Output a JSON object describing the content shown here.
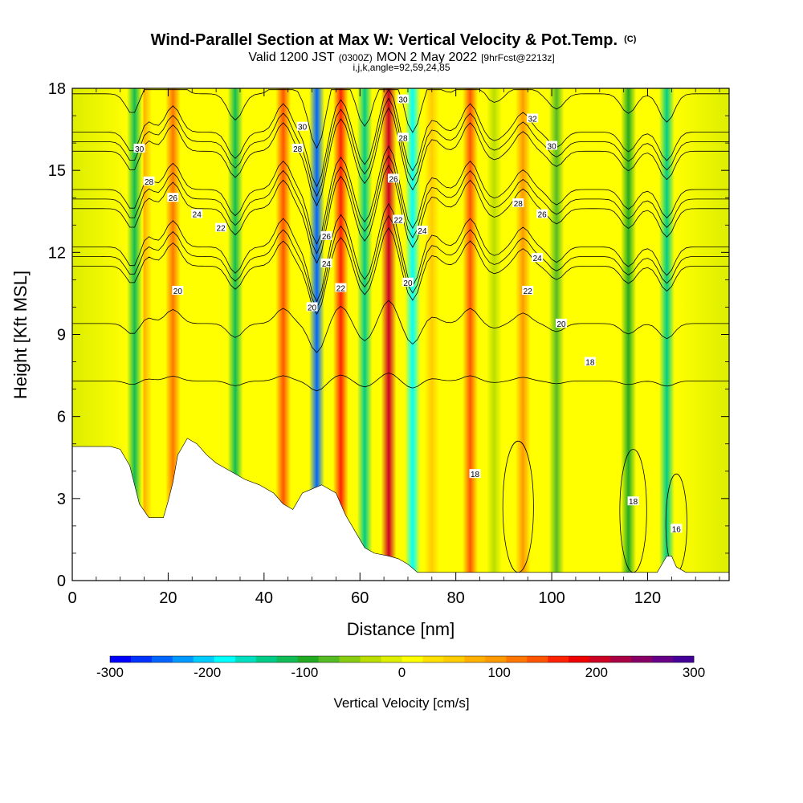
{
  "title": {
    "main": "Wind-Parallel Section at Max W: Vertical Velocity & Pot.Temp.",
    "copyright": "(C)",
    "valid_prefix": "Valid 1200 JST",
    "valid_utc": "(0300Z)",
    "valid_date": "MON 2 May 2022",
    "forecast": "[9hrFcst@2213z]",
    "params": "i,j,k,angle=92,59,24,85"
  },
  "chart_data": {
    "type": "heatmap",
    "xlabel": "Distance [nm]",
    "ylabel": "Height [Kft MSL]",
    "xlim": [
      0,
      137
    ],
    "ylim": [
      0,
      18
    ],
    "xticks": [
      0,
      20,
      40,
      60,
      80,
      100,
      120
    ],
    "yticks": [
      0,
      3,
      6,
      9,
      12,
      15,
      18
    ],
    "fill_variable": "Vertical Velocity [cm/s]",
    "colorbar": {
      "label": "Vertical Velocity [cm/s]",
      "min": -300,
      "max": 300,
      "ticks": [
        -300,
        -200,
        -100,
        0,
        100,
        200,
        300
      ],
      "colors": [
        "#0000ff",
        "#0033ff",
        "#0066ff",
        "#0099ff",
        "#00ccff",
        "#00ffff",
        "#00e0c0",
        "#00cc88",
        "#11bb55",
        "#22aa22",
        "#55bb22",
        "#88cc11",
        "#bbdd00",
        "#ddee00",
        "#ffff00",
        "#ffe000",
        "#ffcc00",
        "#ffb000",
        "#ff9900",
        "#ff7700",
        "#ff5500",
        "#ff2200",
        "#ee0000",
        "#cc0022",
        "#aa0044",
        "#880066",
        "#660088",
        "#440099"
      ]
    },
    "updraft_cores": [
      {
        "distance": 13,
        "w": -120
      },
      {
        "distance": 15,
        "w": 80
      },
      {
        "distance": 21,
        "w": 120
      },
      {
        "distance": 34,
        "w": -120
      },
      {
        "distance": 44,
        "w": 130
      },
      {
        "distance": 51,
        "w": -250
      },
      {
        "distance": 56,
        "w": 150
      },
      {
        "distance": 61,
        "w": -150
      },
      {
        "distance": 66,
        "w": 200
      },
      {
        "distance": 71,
        "w": -180
      },
      {
        "distance": 75,
        "w": 60
      },
      {
        "distance": 83,
        "w": 130
      },
      {
        "distance": 88,
        "w": -40
      },
      {
        "distance": 94,
        "w": 90
      },
      {
        "distance": 101,
        "w": -70
      },
      {
        "distance": 116,
        "w": -90
      },
      {
        "distance": 124,
        "w": -130
      }
    ],
    "contour_variable": "Potential Temperature",
    "contour_levels": [
      16,
      18,
      20,
      22,
      24,
      26,
      28,
      30,
      32
    ],
    "contour_labels": [
      {
        "distance": 14,
        "height": 15.8,
        "text": "30"
      },
      {
        "distance": 16,
        "height": 14.6,
        "text": "28"
      },
      {
        "distance": 21,
        "height": 14.0,
        "text": "26"
      },
      {
        "distance": 26,
        "height": 13.4,
        "text": "24"
      },
      {
        "distance": 31,
        "height": 12.9,
        "text": "22"
      },
      {
        "distance": 22,
        "height": 10.6,
        "text": "20"
      },
      {
        "distance": 48,
        "height": 16.6,
        "text": "30"
      },
      {
        "distance": 47,
        "height": 15.8,
        "text": "28"
      },
      {
        "distance": 53,
        "height": 12.6,
        "text": "26"
      },
      {
        "distance": 53,
        "height": 11.6,
        "text": "24"
      },
      {
        "distance": 56,
        "height": 10.7,
        "text": "22"
      },
      {
        "distance": 50,
        "height": 10.0,
        "text": "20"
      },
      {
        "distance": 69,
        "height": 17.6,
        "text": "30"
      },
      {
        "distance": 69,
        "height": 16.2,
        "text": "28"
      },
      {
        "distance": 67,
        "height": 14.7,
        "text": "26"
      },
      {
        "distance": 68,
        "height": 13.2,
        "text": "22"
      },
      {
        "distance": 73,
        "height": 12.8,
        "text": "24"
      },
      {
        "distance": 70,
        "height": 10.9,
        "text": "20"
      },
      {
        "distance": 96,
        "height": 16.9,
        "text": "32"
      },
      {
        "distance": 100,
        "height": 15.9,
        "text": "30"
      },
      {
        "distance": 93,
        "height": 13.8,
        "text": "28"
      },
      {
        "distance": 98,
        "height": 13.4,
        "text": "26"
      },
      {
        "distance": 97,
        "height": 11.8,
        "text": "24"
      },
      {
        "distance": 95,
        "height": 10.6,
        "text": "22"
      },
      {
        "distance": 102,
        "height": 9.4,
        "text": "20"
      },
      {
        "distance": 108,
        "height": 8.0,
        "text": "18"
      },
      {
        "distance": 84,
        "height": 3.9,
        "text": "18"
      },
      {
        "distance": 117,
        "height": 2.9,
        "text": "18"
      },
      {
        "distance": 126,
        "height": 1.9,
        "text": "16"
      }
    ],
    "terrain_height": [
      [
        0,
        4.9
      ],
      [
        8,
        4.9
      ],
      [
        10,
        4.8
      ],
      [
        12,
        4.2
      ],
      [
        14,
        2.8
      ],
      [
        16,
        2.3
      ],
      [
        19,
        2.3
      ],
      [
        20,
        2.9
      ],
      [
        21,
        3.6
      ],
      [
        22,
        4.6
      ],
      [
        24,
        5.2
      ],
      [
        26,
        5.0
      ],
      [
        28,
        4.6
      ],
      [
        30,
        4.3
      ],
      [
        33,
        4.0
      ],
      [
        36,
        3.7
      ],
      [
        39,
        3.5
      ],
      [
        42,
        3.2
      ],
      [
        44,
        2.8
      ],
      [
        46,
        2.6
      ],
      [
        48,
        3.2
      ],
      [
        52,
        3.5
      ],
      [
        55,
        3.2
      ],
      [
        57,
        2.4
      ],
      [
        59,
        1.8
      ],
      [
        61,
        1.2
      ],
      [
        63,
        1.0
      ],
      [
        66,
        0.9
      ],
      [
        68,
        0.8
      ],
      [
        70,
        0.6
      ],
      [
        72,
        0.3
      ],
      [
        80,
        0.3
      ],
      [
        84,
        0.3
      ],
      [
        88,
        0.3
      ],
      [
        100,
        0.3
      ],
      [
        120,
        0.3
      ],
      [
        122,
        0.3
      ],
      [
        123,
        0.6
      ],
      [
        124,
        0.9
      ],
      [
        125,
        0.9
      ],
      [
        126,
        0.5
      ],
      [
        128,
        0.3
      ],
      [
        137,
        0.3
      ]
    ]
  }
}
